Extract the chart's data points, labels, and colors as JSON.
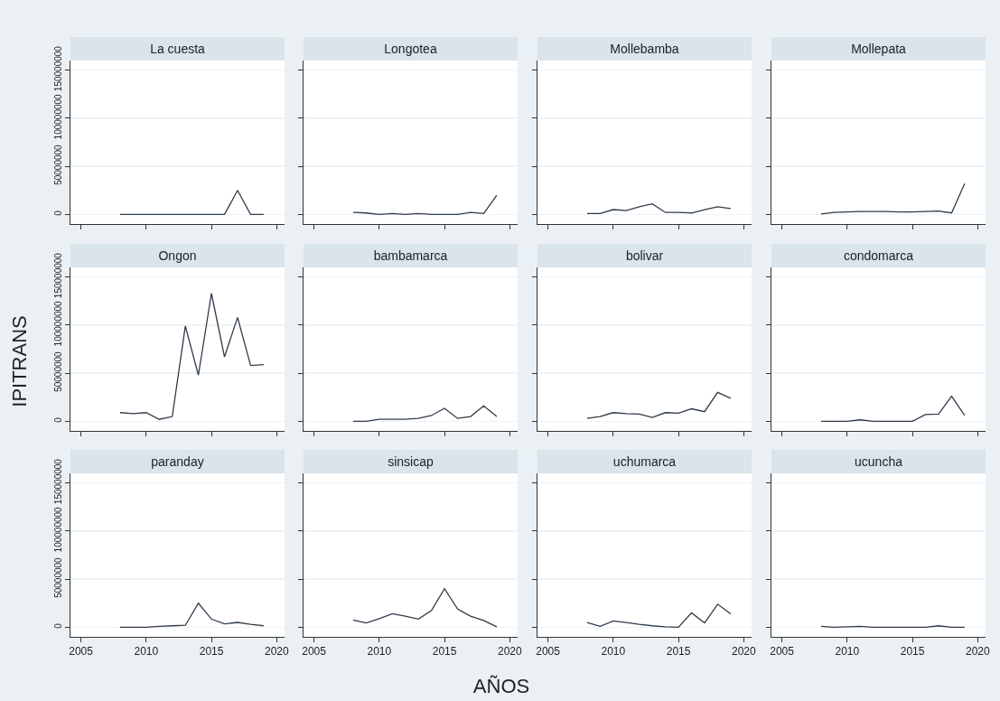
{
  "chart_data": [
    {
      "type": "line",
      "title": "La cuesta",
      "x": [
        2008,
        2009,
        2010,
        2011,
        2012,
        2013,
        2014,
        2015,
        2016,
        2017,
        2018,
        2019
      ],
      "values": [
        0,
        0,
        0,
        0,
        0,
        0,
        0,
        0,
        0,
        25000000,
        0,
        0
      ],
      "color": "#2f3b4a",
      "xlim": [
        2004.2,
        2020.6
      ],
      "xticks": [
        2005,
        2010,
        2015,
        2020
      ],
      "ylim": [
        -10000000,
        160000000
      ],
      "yticks": [
        0,
        50000000,
        100000000,
        150000000
      ],
      "grid": "y",
      "tick_labels": "y"
    },
    {
      "type": "line",
      "title": "Longotea",
      "x": [
        2008,
        2009,
        2010,
        2011,
        2012,
        2013,
        2014,
        2015,
        2016,
        2017,
        2018,
        2019
      ],
      "values": [
        2000000,
        1500000,
        0,
        1000000,
        0,
        1000000,
        0,
        0,
        0,
        2000000,
        1000000,
        20000000
      ],
      "color": "#2f3b4a",
      "xlim": [
        2004.2,
        2020.6
      ],
      "xticks": [
        2005,
        2010,
        2015,
        2020
      ],
      "ylim": [
        -10000000,
        160000000
      ],
      "yticks": [
        0,
        50000000,
        100000000,
        150000000
      ],
      "grid": "y",
      "tick_labels": false
    },
    {
      "type": "line",
      "title": "Mollebamba",
      "x": [
        2008,
        2009,
        2010,
        2011,
        2012,
        2013,
        2014,
        2015,
        2016,
        2017,
        2018,
        2019
      ],
      "values": [
        1000000,
        1000000,
        5000000,
        4000000,
        8000000,
        11000000,
        2000000,
        2000000,
        1500000,
        5000000,
        8000000,
        6000000
      ],
      "color": "#2f3b4a",
      "xlim": [
        2004.2,
        2020.6
      ],
      "xticks": [
        2005,
        2010,
        2015,
        2020
      ],
      "ylim": [
        -10000000,
        160000000
      ],
      "yticks": [
        0,
        50000000,
        100000000,
        150000000
      ],
      "grid": "y",
      "tick_labels": false
    },
    {
      "type": "line",
      "title": "Mollepata",
      "x": [
        2008,
        2009,
        2010,
        2011,
        2012,
        2013,
        2014,
        2015,
        2016,
        2017,
        2018,
        2019
      ],
      "values": [
        500000,
        2000000,
        2500000,
        3000000,
        3000000,
        3000000,
        2500000,
        2500000,
        3000000,
        3500000,
        1500000,
        32000000
      ],
      "color": "#2f3b4a",
      "xlim": [
        2004.2,
        2020.6
      ],
      "xticks": [
        2005,
        2010,
        2015,
        2020
      ],
      "ylim": [
        -10000000,
        160000000
      ],
      "yticks": [
        0,
        50000000,
        100000000,
        150000000
      ],
      "grid": "y",
      "tick_labels": false
    },
    {
      "type": "line",
      "title": "Ongon",
      "ylabel": "IPITRANS",
      "x": [
        2008,
        2009,
        2010,
        2011,
        2012,
        2013,
        2014,
        2015,
        2016,
        2017,
        2018,
        2019
      ],
      "values": [
        9000000,
        8000000,
        9000000,
        2000000,
        5000000,
        99000000,
        48000000,
        133000000,
        67000000,
        108000000,
        58000000,
        59000000
      ],
      "color": "#2f3b4a",
      "xlim": [
        2004.2,
        2020.6
      ],
      "xticks": [
        2005,
        2010,
        2015,
        2020
      ],
      "ylim": [
        -10000000,
        160000000
      ],
      "yticks": [
        0,
        50000000,
        100000000,
        150000000
      ],
      "grid": "y",
      "tick_labels": "y"
    },
    {
      "type": "line",
      "title": "bambamarca",
      "x": [
        2008,
        2009,
        2010,
        2011,
        2012,
        2013,
        2014,
        2015,
        2016,
        2017,
        2018,
        2019
      ],
      "values": [
        0,
        0,
        2000000,
        2000000,
        2000000,
        3000000,
        6000000,
        13500000,
        3000000,
        5000000,
        16000000,
        5000000
      ],
      "color": "#2f3b4a",
      "xlim": [
        2004.2,
        2020.6
      ],
      "xticks": [
        2005,
        2010,
        2015,
        2020
      ],
      "ylim": [
        -10000000,
        160000000
      ],
      "yticks": [
        0,
        50000000,
        100000000,
        150000000
      ],
      "grid": "y",
      "tick_labels": false
    },
    {
      "type": "line",
      "title": "bolivar",
      "x": [
        2008,
        2009,
        2010,
        2011,
        2012,
        2013,
        2014,
        2015,
        2016,
        2017,
        2018,
        2019
      ],
      "values": [
        3000000,
        5000000,
        9000000,
        8000000,
        7500000,
        4000000,
        9000000,
        8500000,
        13000000,
        10000000,
        30000000,
        24000000
      ],
      "color": "#2f3b4a",
      "xlim": [
        2004.2,
        2020.6
      ],
      "xticks": [
        2005,
        2010,
        2015,
        2020
      ],
      "ylim": [
        -10000000,
        160000000
      ],
      "yticks": [
        0,
        50000000,
        100000000,
        150000000
      ],
      "grid": "y",
      "tick_labels": false
    },
    {
      "type": "line",
      "title": "condomarca",
      "x": [
        2008,
        2009,
        2010,
        2011,
        2012,
        2013,
        2014,
        2015,
        2016,
        2017,
        2018,
        2019
      ],
      "values": [
        0,
        0,
        0,
        1500000,
        0,
        0,
        0,
        0,
        7000000,
        7500000,
        26000000,
        6000000
      ],
      "color": "#2f3b4a",
      "xlim": [
        2004.2,
        2020.6
      ],
      "xticks": [
        2005,
        2010,
        2015,
        2020
      ],
      "ylim": [
        -10000000,
        160000000
      ],
      "yticks": [
        0,
        50000000,
        100000000,
        150000000
      ],
      "grid": "y",
      "tick_labels": false
    },
    {
      "type": "line",
      "title": "paranday",
      "x": [
        2008,
        2009,
        2010,
        2011,
        2012,
        2013,
        2014,
        2015,
        2016,
        2017,
        2018,
        2019
      ],
      "values": [
        0,
        0,
        0,
        1000000,
        1500000,
        2000000,
        25000000,
        8500000,
        3500000,
        5000000,
        3000000,
        1500000
      ],
      "color": "#2f3b4a",
      "xlim": [
        2004.2,
        2020.6
      ],
      "xticks": [
        2005,
        2010,
        2015,
        2020
      ],
      "ylim": [
        -10000000,
        160000000
      ],
      "yticks": [
        0,
        50000000,
        100000000,
        150000000
      ],
      "grid": "y"
    },
    {
      "type": "line",
      "title": "sinsicap",
      "xlabel": "AÑOS",
      "x": [
        2008,
        2009,
        2010,
        2011,
        2012,
        2013,
        2014,
        2015,
        2016,
        2017,
        2018,
        2019
      ],
      "values": [
        7500000,
        4500000,
        9000000,
        14000000,
        11500000,
        8500000,
        17500000,
        40000000,
        19000000,
        11500000,
        7000000,
        500000
      ],
      "color": "#2f3b4a",
      "xlim": [
        2004.2,
        2020.6
      ],
      "xticks": [
        2005,
        2010,
        2015,
        2020
      ],
      "ylim": [
        -10000000,
        160000000
      ],
      "yticks": [
        0,
        50000000,
        100000000,
        150000000
      ],
      "grid": "y",
      "tick_labels": "x"
    },
    {
      "type": "line",
      "title": "uchumarca",
      "x": [
        2008,
        2009,
        2010,
        2011,
        2012,
        2013,
        2014,
        2015,
        2016,
        2017,
        2018,
        2019
      ],
      "values": [
        5000000,
        1000000,
        6500000,
        5000000,
        3000000,
        1500000,
        500000,
        0,
        15000000,
        4500000,
        24000000,
        14000000
      ],
      "color": "#2f3b4a",
      "xlim": [
        2004.2,
        2020.6
      ],
      "xticks": [
        2005,
        2010,
        2015,
        2020
      ],
      "ylim": [
        -10000000,
        160000000
      ],
      "yticks": [
        0,
        50000000,
        100000000,
        150000000
      ],
      "grid": "y",
      "tick_labels": "x"
    },
    {
      "type": "line",
      "title": "ucuncha",
      "x": [
        2008,
        2009,
        2010,
        2011,
        2012,
        2013,
        2014,
        2015,
        2016,
        2017,
        2018,
        2019
      ],
      "values": [
        1000000,
        0,
        500000,
        1000000,
        0,
        0,
        0,
        0,
        0,
        1500000,
        0,
        0
      ],
      "color": "#2f3b4a",
      "xlim": [
        2004.2,
        2020.6
      ],
      "xticks": [
        2005,
        2010,
        2015,
        2020
      ],
      "ylim": [
        -10000000,
        160000000
      ],
      "yticks": [
        0,
        50000000,
        100000000,
        150000000
      ],
      "grid": "y",
      "tick_labels": "x"
    }
  ]
}
